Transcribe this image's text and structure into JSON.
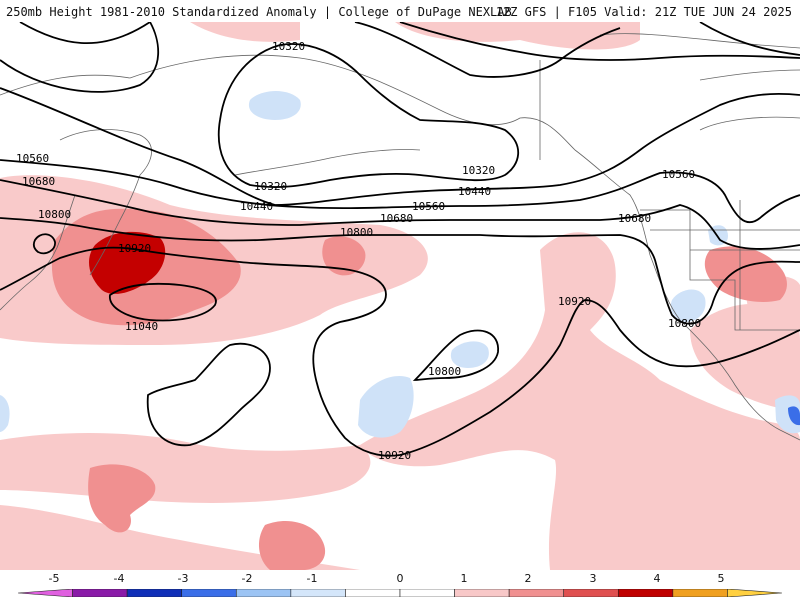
{
  "header": {
    "left": "250mb Height 1981-2010 Standardized Anomaly | College of DuPage NEXLAB",
    "right": "12Z GFS | F105 Valid: 21Z TUE JUN 24 2025"
  },
  "contours": [
    {
      "id": "c10320a",
      "value": "10320"
    },
    {
      "id": "c10320b",
      "value": "10320"
    },
    {
      "id": "c10320c",
      "value": "10320"
    },
    {
      "id": "c10440a",
      "value": "10440"
    },
    {
      "id": "c10440b",
      "value": "10440"
    },
    {
      "id": "c10560a",
      "value": "10560"
    },
    {
      "id": "c10560b",
      "value": "10560"
    },
    {
      "id": "c10560c",
      "value": "10560"
    },
    {
      "id": "c10680a",
      "value": "10680"
    },
    {
      "id": "c10680b",
      "value": "10680"
    },
    {
      "id": "c10680c",
      "value": "10680"
    },
    {
      "id": "c10800a",
      "value": "10800"
    },
    {
      "id": "c10800b",
      "value": "10800"
    },
    {
      "id": "c10800c",
      "value": "10800"
    },
    {
      "id": "c10800d",
      "value": "10800"
    },
    {
      "id": "c10920a",
      "value": "10920"
    },
    {
      "id": "c10920b",
      "value": "10920"
    },
    {
      "id": "c10920c",
      "value": "10920"
    },
    {
      "id": "c11040a",
      "value": "11040"
    }
  ],
  "colorbar": {
    "labels": [
      "-5",
      "-4",
      "-3",
      "-2",
      "-1",
      "0",
      "1",
      "2",
      "3",
      "4",
      "5"
    ],
    "colors": [
      "#e060e0",
      "#8a1aa8",
      "#0f2fb8",
      "#3a6ee8",
      "#9cc4f4",
      "#d4e6fa",
      "#ffffff",
      "#ffffff",
      "#f8c8c8",
      "#f09090",
      "#e05050",
      "#c00000",
      "#f0a020",
      "#ffd040"
    ]
  }
}
